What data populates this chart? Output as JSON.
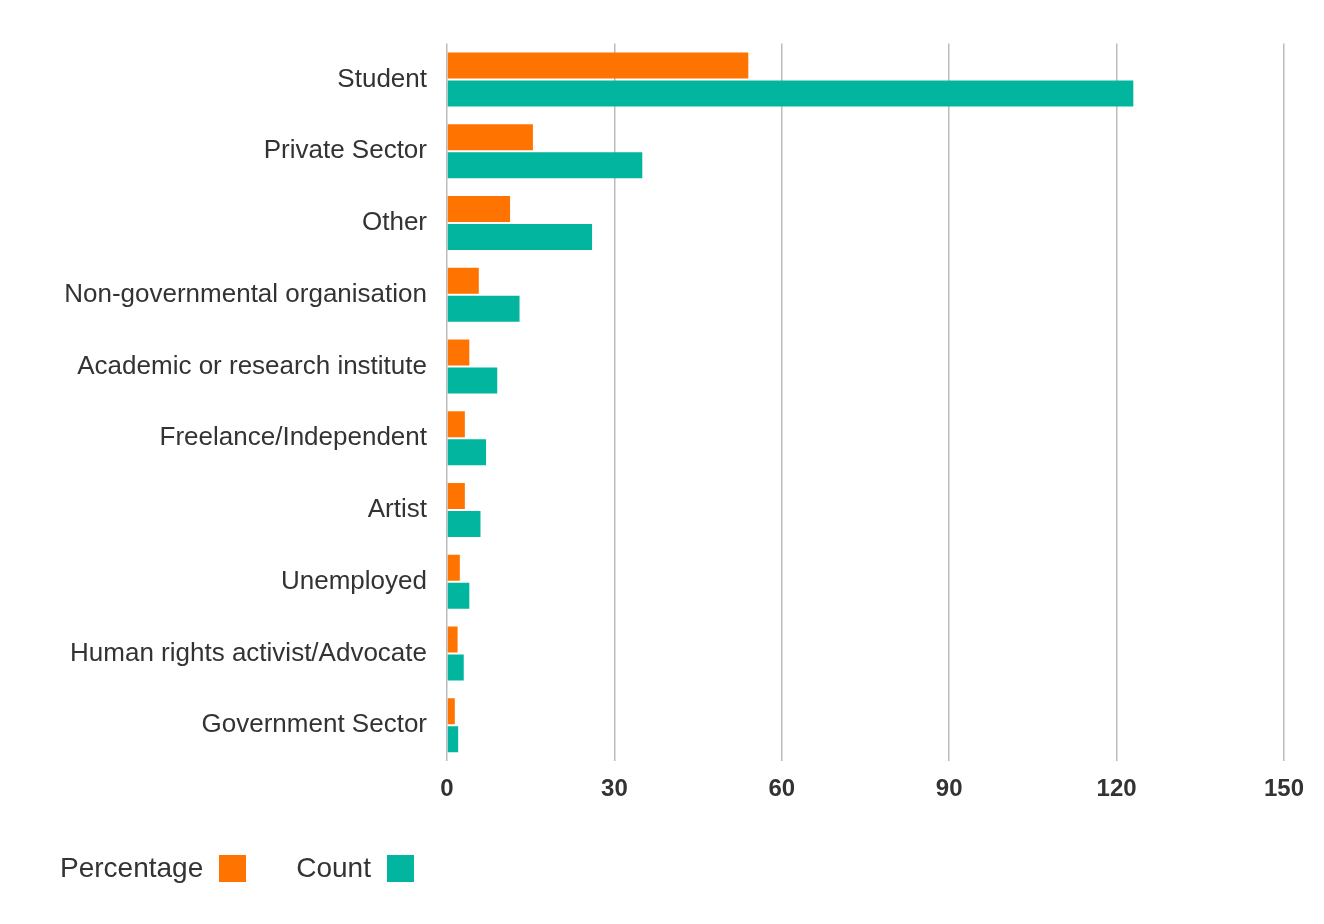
{
  "chart_data": {
    "type": "bar",
    "orientation": "horizontal",
    "categories": [
      "Student",
      "Private Sector",
      "Other",
      "Non-governmental organisation",
      "Academic or research institute",
      "Freelance/Independent",
      "Artist",
      "Unemployed",
      "Human rights activist/Advocate",
      "Government Sector"
    ],
    "series": [
      {
        "name": "Percentage",
        "color": "#ff7400",
        "values": [
          54,
          15.4,
          11.3,
          5.7,
          4,
          3.2,
          3.2,
          2.3,
          1.9,
          1.4
        ]
      },
      {
        "name": "Count",
        "color": "#02b59e",
        "values": [
          123,
          35,
          26,
          13,
          9,
          7,
          6,
          4,
          3,
          2
        ]
      }
    ],
    "xlim": [
      0,
      150
    ],
    "xticks": [
      0,
      30,
      60,
      90,
      120,
      150
    ],
    "grid": "x",
    "legend": "bottom left"
  }
}
